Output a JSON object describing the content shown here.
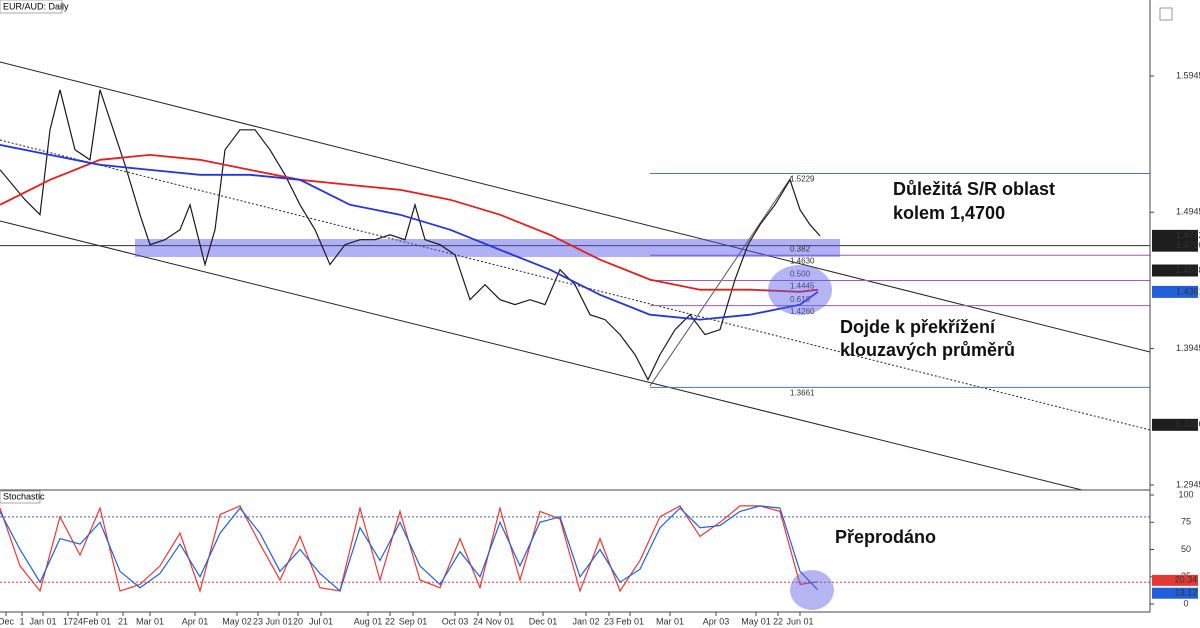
{
  "chart_data": {
    "type": "line",
    "title": "EUR/AUD: Daily",
    "xlim": [
      0,
      460
    ],
    "ylim": [
      1.2908,
      1.6502
    ],
    "yticks": [
      1.5945,
      1.4945,
      1.3945,
      1.2945
    ],
    "xticks": [
      {
        "value": 2.4,
        "label": "Dec"
      },
      {
        "value": 8.8,
        "label": "1"
      },
      {
        "value": 17.2,
        "label": "Jan 01"
      },
      {
        "value": 27.2,
        "label": "17"
      },
      {
        "value": 31.2,
        "label": "24"
      },
      {
        "value": 38.8,
        "label": "Feb 01"
      },
      {
        "value": 49.2,
        "label": "21"
      },
      {
        "value": 60,
        "label": "Mar 01"
      },
      {
        "value": 78,
        "label": "Apr 01"
      },
      {
        "value": 94.8,
        "label": "May 02"
      },
      {
        "value": 103.2,
        "label": "23"
      },
      {
        "value": 111.6,
        "label": "Jun 01"
      },
      {
        "value": 119.2,
        "label": "20"
      },
      {
        "value": 128.4,
        "label": "Jul 01"
      },
      {
        "value": 147.2,
        "label": "Aug 01"
      },
      {
        "value": 156,
        "label": "22"
      },
      {
        "value": 165.2,
        "label": "Sep 01"
      },
      {
        "value": 182,
        "label": "Oct 03"
      },
      {
        "value": 191.2,
        "label": "24"
      },
      {
        "value": 200,
        "label": "Nov 01"
      },
      {
        "value": 217.2,
        "label": "Dec 01"
      },
      {
        "value": 234.4,
        "label": "Jan 02"
      },
      {
        "value": 243.6,
        "label": "23"
      },
      {
        "value": 252,
        "label": "Feb 01"
      },
      {
        "value": 268,
        "label": "Mar 01"
      },
      {
        "value": 286.4,
        "label": "Apr 03"
      },
      {
        "value": 302.4,
        "label": "May 01"
      },
      {
        "value": 311.2,
        "label": "22"
      },
      {
        "value": 320,
        "label": "Jun 01"
      }
    ],
    "series": [
      {
        "color": "#1a1a1a",
        "x": [
          0,
          10,
          16,
          20,
          24,
          30,
          36,
          40,
          44,
          50,
          56,
          60,
          66,
          72,
          76,
          82,
          86,
          90,
          96,
          102,
          108,
          114,
          120,
          126,
          132,
          138,
          144,
          150,
          156,
          162,
          166,
          170,
          176,
          182,
          188,
          194,
          200,
          206,
          212,
          218,
          224,
          230,
          236,
          242,
          248,
          254,
          259.2,
          264,
          270,
          276,
          282,
          288,
          294,
          299.2,
          304,
          310,
          316,
          320,
          324,
          328
        ],
        "values": [
          1.5257,
          1.5037,
          1.4927,
          1.555,
          1.5843,
          1.5403,
          1.533,
          1.5843,
          1.5623,
          1.5293,
          1.4927,
          1.4707,
          1.4744,
          1.4817,
          1.5,
          1.4561,
          1.4817,
          1.5403,
          1.555,
          1.555,
          1.5403,
          1.522,
          1.5,
          1.4817,
          1.4561,
          1.4707,
          1.4744,
          1.4744,
          1.478,
          1.4744,
          1.5,
          1.4744,
          1.4707,
          1.4634,
          1.4304,
          1.4414,
          1.4304,
          1.4268,
          1.4304,
          1.4268,
          1.4524,
          1.4414,
          1.4194,
          1.4158,
          1.4048,
          1.3901,
          1.3718,
          1.3901,
          1.4084,
          1.4194,
          1.4048,
          1.4084,
          1.4451,
          1.4707,
          1.4854,
          1.5,
          1.5183,
          1.4964,
          1.4854,
          1.4772
        ]
      },
      {
        "color": "#e02020",
        "x": [
          0,
          20,
          40,
          60,
          80,
          100,
          120,
          140,
          160,
          180,
          200,
          220,
          240,
          260,
          280,
          300,
          320,
          327.2
        ],
        "values": [
          1.5,
          1.5183,
          1.533,
          1.5366,
          1.533,
          1.5256,
          1.5183,
          1.5146,
          1.511,
          1.5037,
          1.4927,
          1.478,
          1.4597,
          1.4451,
          1.4377,
          1.4377,
          1.4362,
          1.4377
        ]
      },
      {
        "color": "#2436d8",
        "x": [
          0,
          20,
          40,
          60,
          80,
          100,
          120,
          140,
          160,
          180,
          200,
          220,
          240,
          260,
          280,
          300,
          320,
          327.2
        ],
        "values": [
          1.5439,
          1.5366,
          1.5293,
          1.5256,
          1.522,
          1.522,
          1.5183,
          1.5,
          1.4927,
          1.4817,
          1.467,
          1.4524,
          1.434,
          1.4194,
          1.4158,
          1.4194,
          1.4268,
          1.4362
        ]
      }
    ],
    "support_line": {
      "value": 1.47,
      "color": "#333333"
    },
    "levels": [
      {
        "value": 1.5229,
        "color": "#4a7ab5"
      },
      {
        "ratio": "0.382",
        "value": 1.463,
        "label": "1.4630",
        "color": "#9c5fb5"
      },
      {
        "ratio": "0.500",
        "value": 1.4445,
        "color": "#9c5fb5"
      },
      {
        "ratio": "0.618",
        "value": 1.426,
        "label": "1.4260",
        "color": "#9c5fb5"
      },
      {
        "value": 1.3661,
        "color": "#4a7ab5"
      }
    ],
    "price_tags": [
      {
        "value": 1.4772,
        "color": "#1e1e1e"
      },
      {
        "value": 1.47,
        "label": "1.4700",
        "color": "#1e1e1e"
      },
      {
        "value": 1.4518,
        "color": "#1e1e1e"
      },
      {
        "value": 1.4361,
        "color": "#2160d8"
      },
      {
        "value": 1.3386,
        "color": "#1e1e1e"
      }
    ],
    "annotations": {
      "sr_zone": [
        "Důležitá S/R oblast",
        "kolem 1,4700"
      ],
      "crossover": [
        "Dojde k překřížení",
        "klouzavých průměrů"
      ],
      "oversold": "Přeprodáno"
    },
    "stochastic": {
      "title": "Stochastic",
      "ylim": [
        -7.3,
        104.6
      ],
      "yticks": [
        0,
        25,
        50,
        75,
        100
      ],
      "levels": [
        {
          "value": 80,
          "color": "#3a5fcd"
        },
        {
          "value": 20,
          "color": "#e53935"
        }
      ],
      "x": [
        0,
        8,
        16,
        24,
        32,
        40,
        48,
        56,
        64,
        72,
        80,
        88,
        96,
        104,
        112,
        120,
        128,
        136,
        144,
        152,
        160,
        168,
        176,
        184,
        192,
        200,
        208,
        216,
        224,
        232,
        240,
        248,
        256,
        264,
        272,
        280,
        288,
        296,
        304,
        312,
        320,
        327
      ],
      "series": [
        {
          "color": "#e53935",
          "values": [
            88,
            35,
            12,
            80,
            45,
            88,
            12,
            18,
            35,
            65,
            12,
            82,
            90,
            55,
            22,
            62,
            15,
            12,
            88,
            22,
            85,
            22,
            15,
            60,
            15,
            88,
            22,
            85,
            78,
            12,
            60,
            12,
            40,
            80,
            90,
            62,
            75,
            90,
            90,
            85,
            18,
            20.34
          ]
        },
        {
          "color": "#2160d8",
          "values": [
            85,
            50,
            20,
            60,
            55,
            75,
            30,
            15,
            28,
            55,
            25,
            65,
            88,
            65,
            30,
            50,
            28,
            12,
            70,
            40,
            75,
            35,
            18,
            48,
            25,
            75,
            35,
            75,
            80,
            25,
            50,
            20,
            32,
            70,
            88,
            70,
            72,
            85,
            90,
            88,
            30,
            13.12
          ]
        }
      ],
      "tags": [
        {
          "value": 20.34,
          "color": "#e53935"
        },
        {
          "value": 13.12,
          "color": "#2160d8"
        }
      ]
    }
  }
}
